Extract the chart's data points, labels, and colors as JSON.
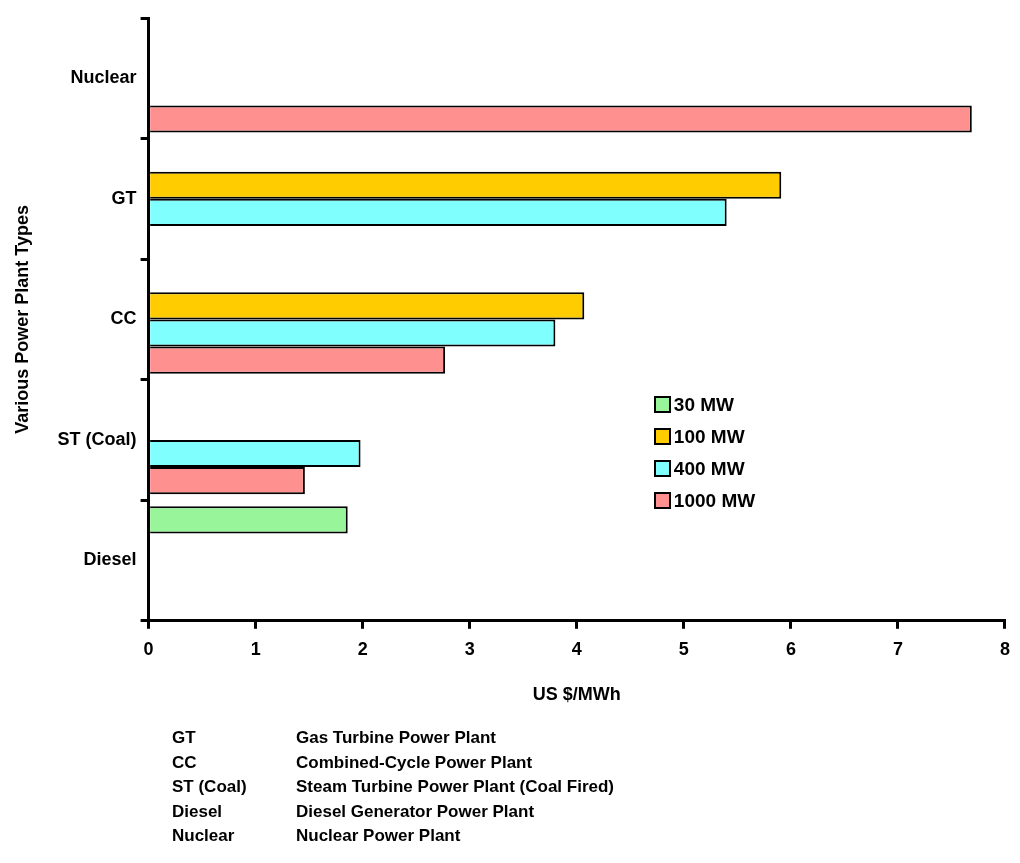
{
  "chart_data": {
    "type": "bar",
    "orientation": "horizontal",
    "xlabel": "US $/MWh",
    "ylabel": "Various Power Plant Types",
    "categories": [
      "Nuclear",
      "GT",
      "CC",
      "ST (Coal)",
      "Diesel"
    ],
    "series": [
      {
        "name": "30 MW",
        "color": "#99f599",
        "values": [
          null,
          null,
          null,
          null,
          1.86
        ]
      },
      {
        "name": "100 MW",
        "color": "#ffcc00",
        "values": [
          null,
          5.91,
          4.07,
          null,
          null
        ]
      },
      {
        "name": "400 MW",
        "color": "#80ffff",
        "values": [
          null,
          5.4,
          3.8,
          1.98,
          null
        ]
      },
      {
        "name": "1000 MW",
        "color": "#ff9090",
        "values": [
          7.69,
          null,
          2.77,
          1.46,
          null
        ]
      }
    ],
    "xlim": [
      0,
      8
    ],
    "xticks": [
      0,
      1,
      2,
      3,
      4,
      5,
      6,
      7,
      8
    ],
    "grid": false,
    "legend": "right",
    "annotations": [
      "GT",
      "Gas Turbine Power Plant",
      "CC",
      "Combined-Cycle Power Plant",
      "ST (Coal)",
      "Steam Turbine Power Plant (Coal Fired)",
      "Diesel",
      "Diesel Generator Power Plant",
      "Nuclear",
      "Nuclear Power Plant"
    ]
  }
}
